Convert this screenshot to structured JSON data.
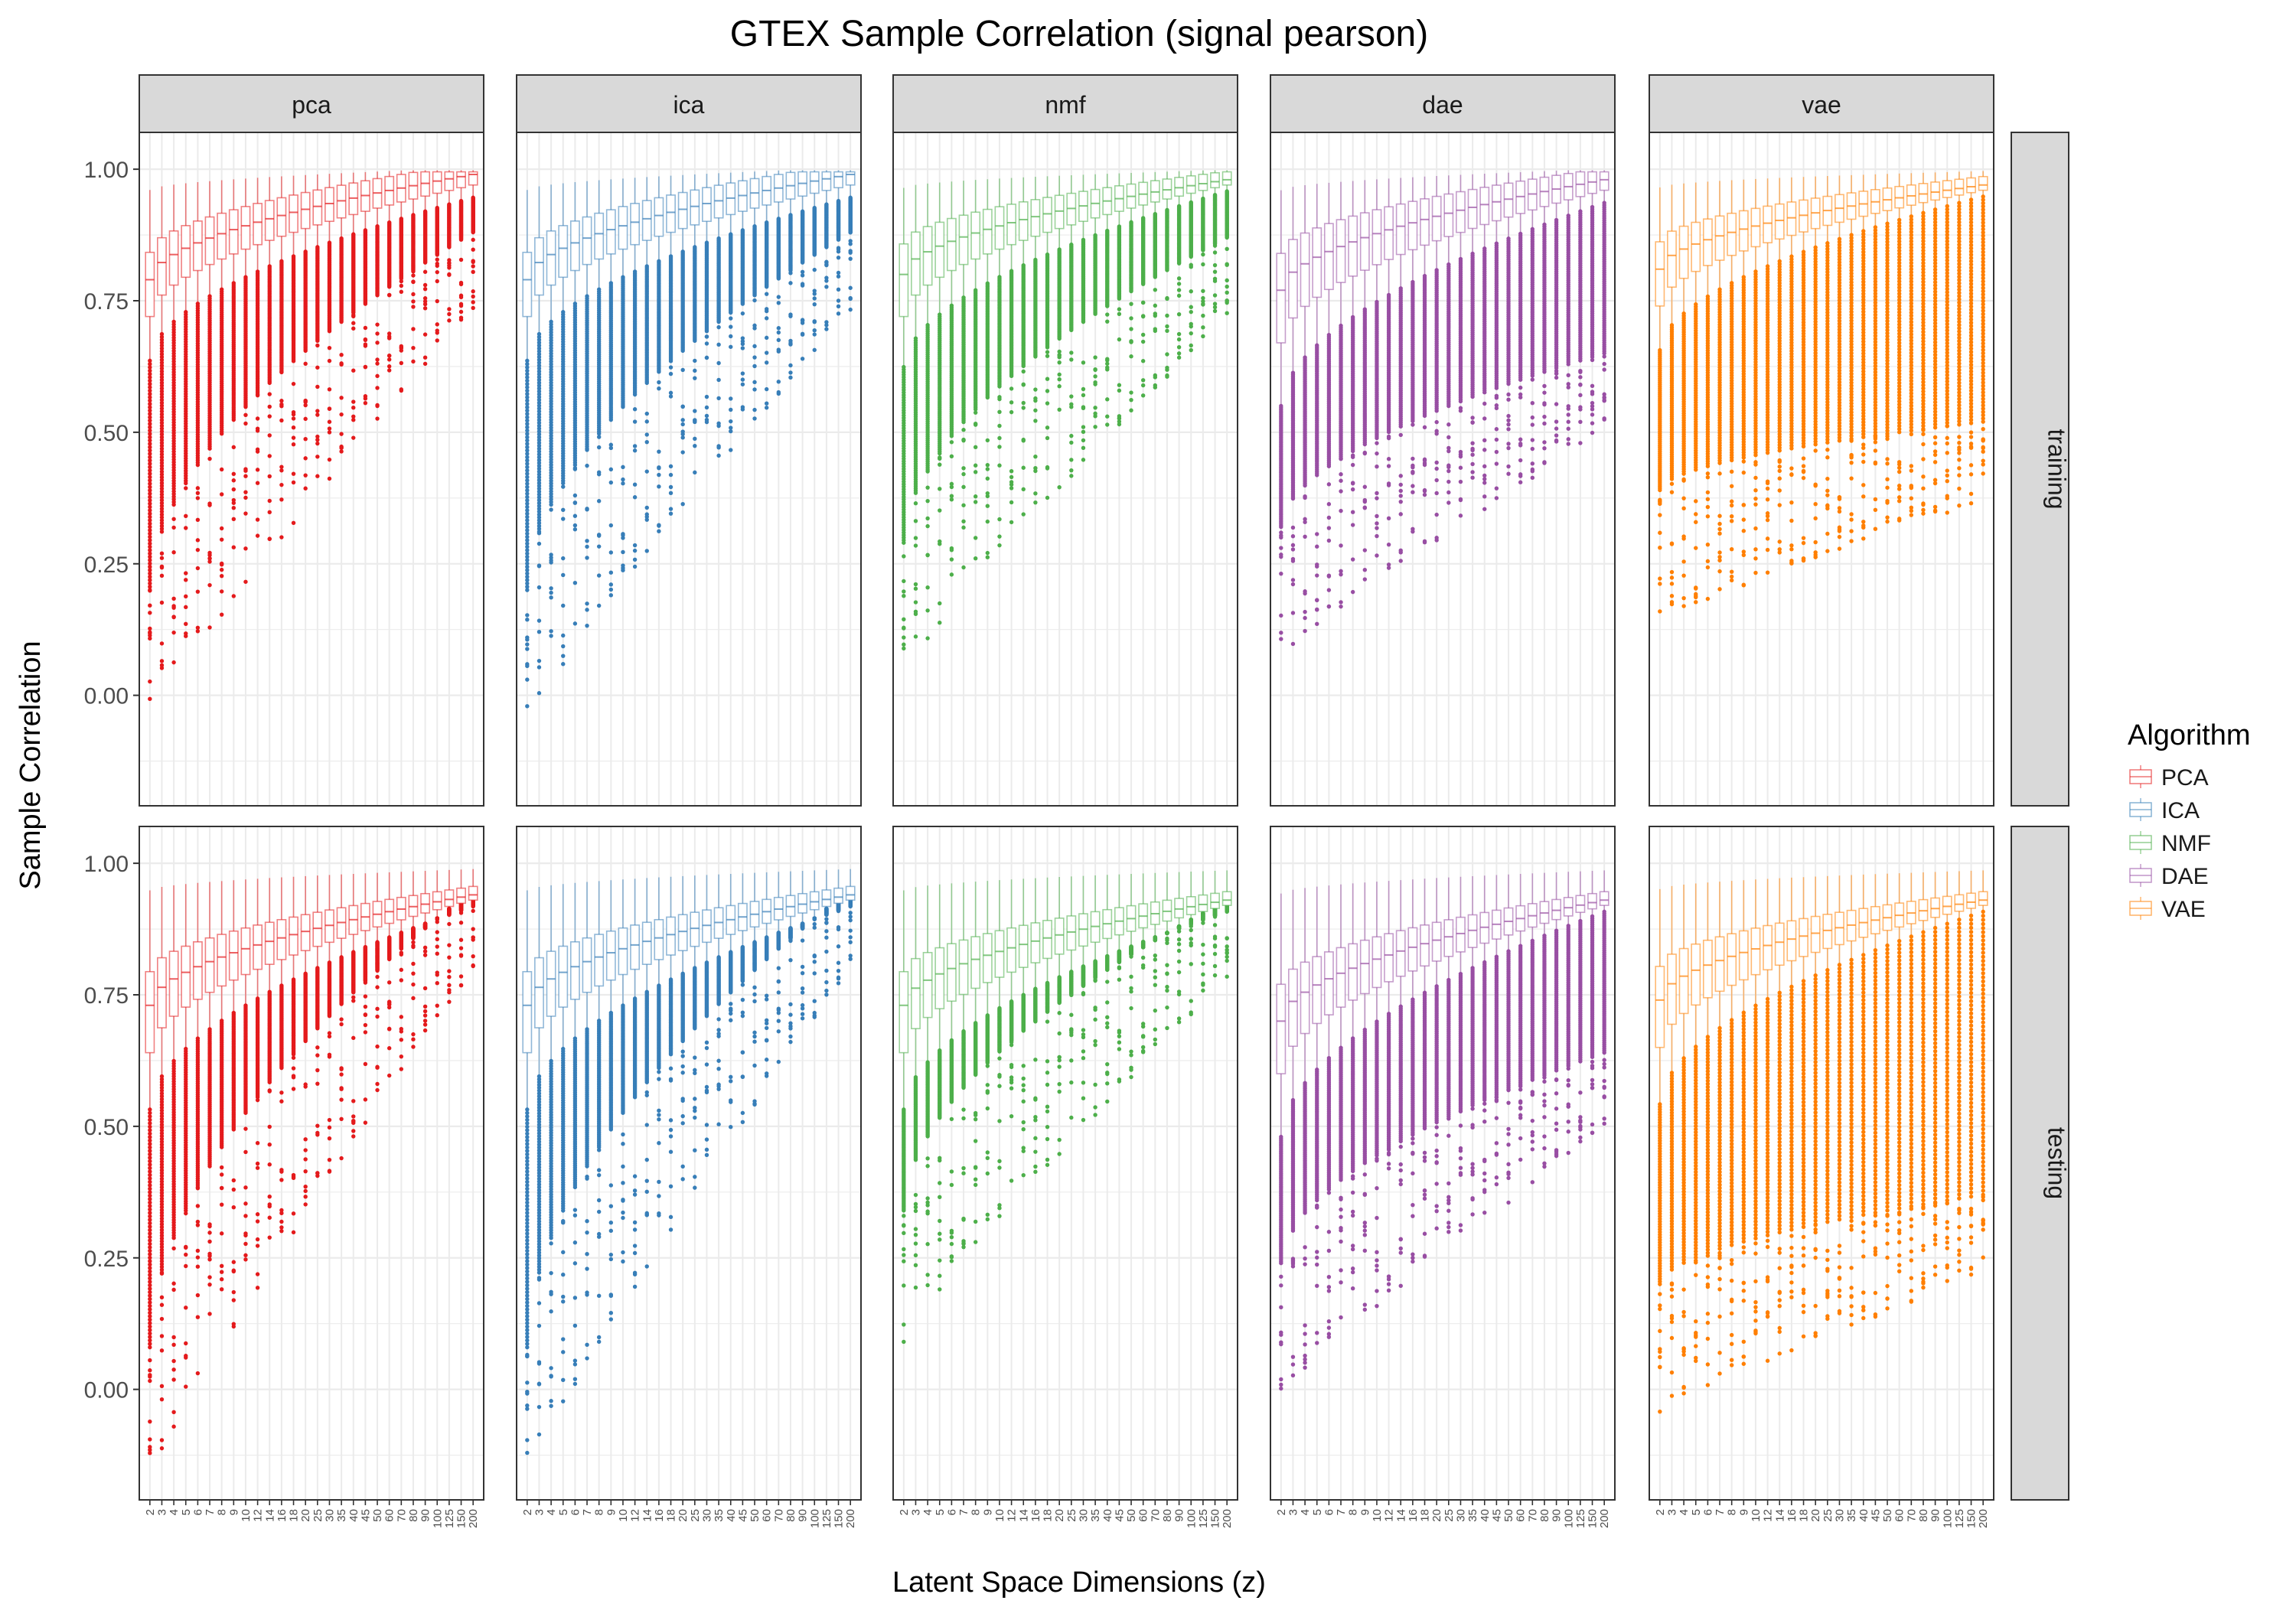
{
  "chart_data": {
    "type": "box",
    "title": "GTEX Sample Correlation (signal pearson)",
    "xlabel": "Latent Space Dimensions (z)",
    "ylabel": "Sample Correlation",
    "ylim": [
      -0.21,
      1.07
    ],
    "yticks": [
      "0.00",
      "0.25",
      "0.50",
      "0.75",
      "1.00"
    ],
    "grid": true,
    "legend_title": "Algorithm",
    "legend_position": "right",
    "legend": [
      "PCA",
      "ICA",
      "NMF",
      "DAE",
      "VAE"
    ],
    "columns": [
      "pca",
      "ica",
      "nmf",
      "dae",
      "vae"
    ],
    "rows": [
      "training",
      "testing"
    ],
    "colors": {
      "pca": "#e41a1c",
      "ica": "#377eb8",
      "nmf": "#4daf4a",
      "dae": "#984ea3",
      "vae": "#ff7f00"
    },
    "x_categories": [
      "2",
      "3",
      "4",
      "5",
      "6",
      "7",
      "8",
      "9",
      "10",
      "12",
      "14",
      "16",
      "18",
      "20",
      "25",
      "30",
      "35",
      "40",
      "45",
      "50",
      "60",
      "70",
      "80",
      "90",
      "100",
      "125",
      "150",
      "200"
    ],
    "summary": {
      "training": {
        "pca": {
          "median": [
            0.79,
            0.99
          ],
          "min": [
            -0.05,
            0.73
          ],
          "q1": [
            0.72,
            0.97
          ]
        },
        "ica": {
          "median": [
            0.79,
            0.99
          ],
          "min": [
            -0.05,
            0.73
          ],
          "q1": [
            0.72,
            0.97
          ]
        },
        "nmf": {
          "median": [
            0.8,
            0.98
          ],
          "min": [
            0.04,
            0.72
          ],
          "q1": [
            0.72,
            0.97
          ]
        },
        "dae": {
          "median": [
            0.77,
            0.98
          ],
          "min": [
            0.07,
            0.5
          ],
          "q1": [
            0.67,
            0.96
          ]
        },
        "vae": {
          "median": [
            0.81,
            0.97
          ],
          "min": [
            0.14,
            0.37
          ],
          "q1": [
            0.74,
            0.96
          ]
        }
      },
      "testing": {
        "pca": {
          "median": [
            0.73,
            0.94
          ],
          "min": [
            -0.17,
            0.8
          ],
          "q1": [
            0.64,
            0.93
          ]
        },
        "ica": {
          "median": [
            0.73,
            0.94
          ],
          "min": [
            -0.17,
            0.8
          ],
          "q1": [
            0.64,
            0.93
          ]
        },
        "nmf": {
          "median": [
            0.73,
            0.93
          ],
          "min": [
            0.09,
            0.78
          ],
          "q1": [
            0.64,
            0.92
          ]
        },
        "dae": {
          "median": [
            0.7,
            0.93
          ],
          "min": [
            -0.01,
            0.49
          ],
          "q1": [
            0.6,
            0.92
          ]
        },
        "vae": {
          "median": [
            0.74,
            0.93
          ],
          "min": [
            -0.05,
            0.22
          ],
          "q1": [
            0.65,
            0.92
          ]
        }
      }
    }
  }
}
